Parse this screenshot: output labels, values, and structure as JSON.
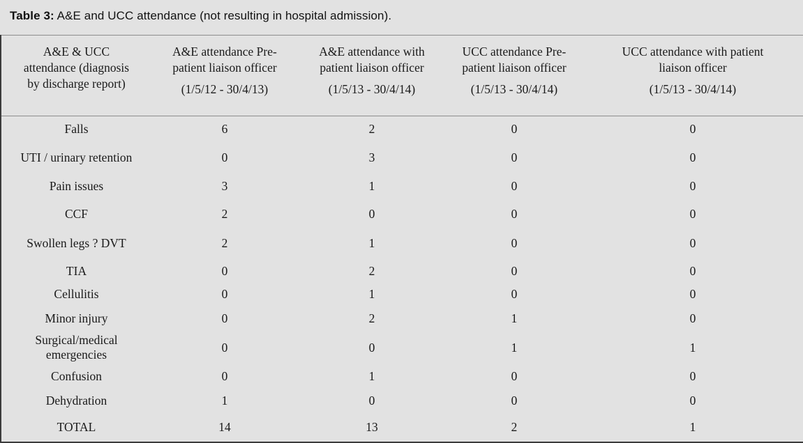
{
  "caption": {
    "label": "Table 3:",
    "text": " A&E and UCC attendance (not resulting in hospital admission)."
  },
  "table": {
    "columns": [
      {
        "label": "A&E & UCC\nattendance (diagnosis\nby discharge report)",
        "period": ""
      },
      {
        "label": "A&E attendance Pre-\npatient liaison officer",
        "period": "(1/5/12 - 30/4/13)"
      },
      {
        "label": "A&E attendance  with\npatient liaison officer",
        "period": "(1/5/13 - 30/4/14)"
      },
      {
        "label": "UCC attendance Pre-\npatient liaison officer",
        "period": "(1/5/13 - 30/4/14)"
      },
      {
        "label": "UCC attendance with patient\nliaison officer",
        "period": "(1/5/13 - 30/4/14)"
      }
    ],
    "rows": [
      {
        "diagnosis": "Falls",
        "values": [
          "6",
          "2",
          "0",
          "0"
        ]
      },
      {
        "diagnosis": "UTI / urinary retention",
        "values": [
          "0",
          "3",
          "0",
          "0"
        ]
      },
      {
        "diagnosis": "Pain issues",
        "values": [
          "3",
          "1",
          "0",
          "0"
        ]
      },
      {
        "diagnosis": "CCF",
        "values": [
          "2",
          "0",
          "0",
          "0"
        ]
      },
      {
        "diagnosis": "Swollen legs ? DVT",
        "values": [
          "2",
          "1",
          "0",
          "0"
        ]
      },
      {
        "diagnosis": "TIA",
        "values": [
          "0",
          "2",
          "0",
          "0"
        ]
      },
      {
        "diagnosis": "Cellulitis",
        "values": [
          "0",
          "1",
          "0",
          "0"
        ]
      },
      {
        "diagnosis": "Minor injury",
        "values": [
          "0",
          "2",
          "1",
          "0"
        ]
      },
      {
        "diagnosis": "Surgical/medical emergencies",
        "values": [
          "0",
          "0",
          "1",
          "1"
        ]
      },
      {
        "diagnosis": "Confusion",
        "values": [
          "0",
          "1",
          "0",
          "0"
        ]
      },
      {
        "diagnosis": "Dehydration",
        "values": [
          "1",
          "0",
          "0",
          "0"
        ]
      },
      {
        "diagnosis": "TOTAL",
        "values": [
          "14",
          "13",
          "2",
          "1"
        ]
      }
    ]
  },
  "colors": {
    "background": "#e2e2e2",
    "rule": "#8d8d8d",
    "frame_border": "#3c3c3c",
    "text": "#1a1a1a"
  }
}
